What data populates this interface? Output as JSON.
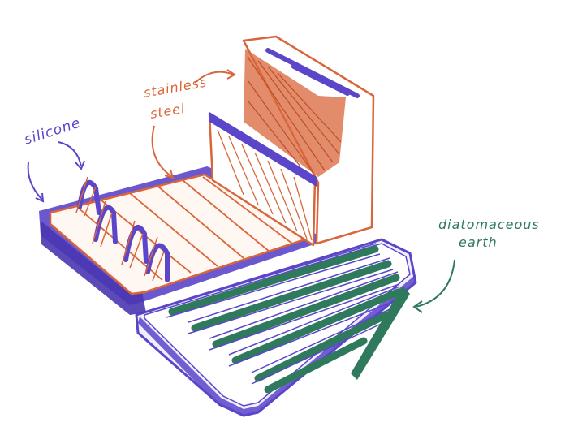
{
  "annotations": {
    "silicone": "silicone",
    "stainless_line1": "stainless",
    "stainless_line2": "steel",
    "diatomaceous_line1": "diatomaceous",
    "diatomaceous_line2": "earth"
  },
  "colors": {
    "purple": "#5b45c9",
    "orange": "#d9663a",
    "green": "#2f7a5c",
    "background": "#ffffff"
  },
  "parts": [
    "silicone-pegs",
    "stainless-steel-tray",
    "stainless-steel-caddy",
    "diatomaceous-earth-mat"
  ]
}
